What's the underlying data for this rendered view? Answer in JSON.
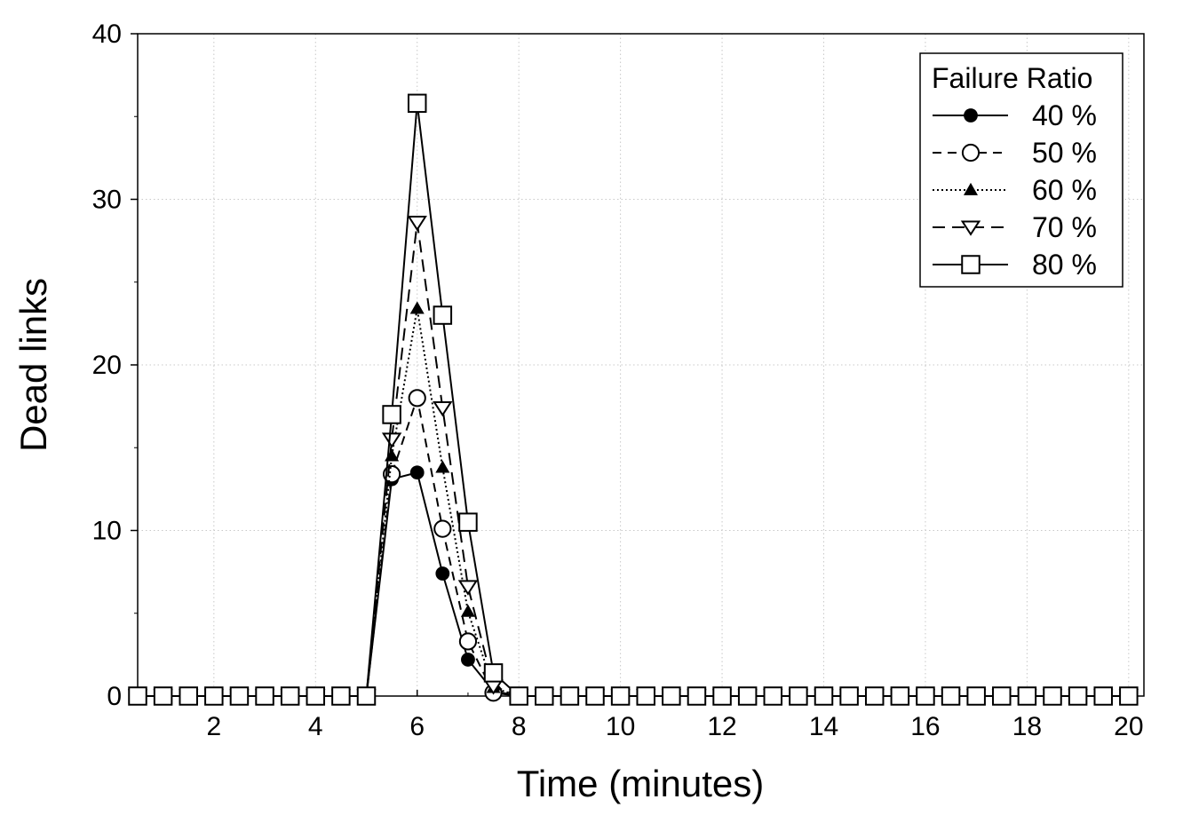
{
  "chart_data": {
    "type": "line",
    "xlabel": "Time (minutes)",
    "ylabel": "Dead links",
    "xlim": [
      0.5,
      20.3
    ],
    "ylim": [
      0,
      40
    ],
    "x_ticks": [
      2,
      4,
      6,
      8,
      10,
      12,
      14,
      16,
      18,
      20
    ],
    "y_ticks": [
      0,
      10,
      20,
      30,
      40
    ],
    "grid": true,
    "legend": {
      "title": "Failure Ratio",
      "position": "top-right"
    },
    "x": [
      0.5,
      1,
      1.5,
      2,
      2.5,
      3,
      3.5,
      4,
      4.5,
      5,
      5.5,
      6,
      6.5,
      7,
      7.5,
      8,
      8.5,
      9,
      9.5,
      10,
      10.5,
      11,
      11.5,
      12,
      12.5,
      13,
      13.5,
      14,
      14.5,
      15,
      15.5,
      16,
      16.5,
      17,
      17.5,
      18,
      18.5,
      19,
      19.5,
      20
    ],
    "series": [
      {
        "name": "40 %",
        "marker": "filled-circle",
        "line": "solid",
        "values": [
          0,
          0,
          0,
          0,
          0,
          0,
          0,
          0,
          0,
          0,
          13.1,
          13.5,
          7.4,
          2.2,
          0.3,
          0,
          0,
          0,
          0,
          0,
          0,
          0,
          0,
          0,
          0,
          0,
          0,
          0,
          0,
          0,
          0,
          0,
          0,
          0,
          0,
          0,
          0,
          0,
          0,
          0
        ]
      },
      {
        "name": "50 %",
        "marker": "open-circle",
        "line": "dashed",
        "values": [
          0,
          0,
          0,
          0,
          0,
          0,
          0,
          0,
          0,
          0,
          13.4,
          18.0,
          10.1,
          3.3,
          0.2,
          0,
          0,
          0,
          0,
          0,
          0,
          0,
          0,
          0,
          0,
          0,
          0,
          0,
          0,
          0,
          0,
          0,
          0,
          0,
          0,
          0,
          0,
          0,
          0,
          0
        ]
      },
      {
        "name": "60 %",
        "marker": "filled-triangle",
        "line": "dotted",
        "values": [
          0,
          0,
          0,
          0,
          0,
          0,
          0,
          0,
          0,
          0,
          14.5,
          23.4,
          13.8,
          5.1,
          0.5,
          0,
          0,
          0,
          0,
          0,
          0,
          0,
          0,
          0,
          0,
          0,
          0,
          0,
          0,
          0,
          0,
          0,
          0,
          0,
          0,
          0,
          0,
          0,
          0,
          0
        ]
      },
      {
        "name": "70 %",
        "marker": "open-triangle-down",
        "line": "long-dash",
        "values": [
          0,
          0,
          0,
          0,
          0,
          0,
          0,
          0,
          0,
          0,
          15.5,
          28.6,
          17.4,
          6.6,
          0.6,
          0,
          0,
          0,
          0,
          0,
          0,
          0,
          0,
          0,
          0,
          0,
          0,
          0,
          0,
          0,
          0,
          0,
          0,
          0,
          0,
          0,
          0,
          0,
          0,
          0
        ]
      },
      {
        "name": "80 %",
        "marker": "open-square",
        "line": "solid",
        "values": [
          0,
          0,
          0,
          0,
          0,
          0,
          0,
          0,
          0,
          0,
          17.0,
          35.8,
          23.0,
          10.5,
          1.4,
          0,
          0,
          0,
          0,
          0,
          0,
          0,
          0,
          0,
          0,
          0,
          0,
          0,
          0,
          0,
          0,
          0,
          0,
          0,
          0,
          0,
          0,
          0,
          0,
          0
        ]
      }
    ]
  }
}
